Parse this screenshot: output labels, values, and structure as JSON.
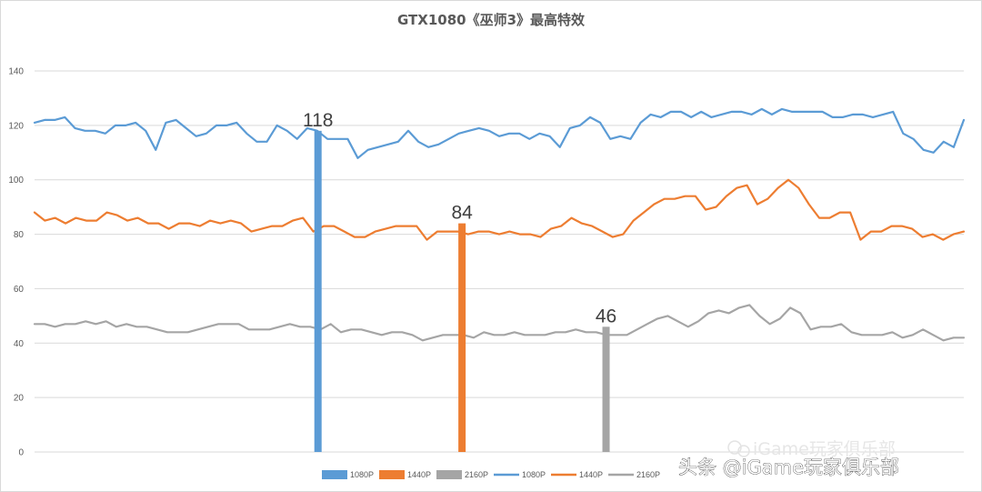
{
  "chart_data": {
    "type": "line",
    "title": "GTX1080《巫师3》最高特效",
    "ylim": [
      0,
      140
    ],
    "yticks": [
      0,
      20,
      40,
      60,
      80,
      100,
      120,
      140
    ],
    "grid": true,
    "legend_position": "bottom",
    "series": [
      {
        "name": "1080P",
        "color": "#5B9BD5",
        "values": [
          121,
          122,
          122,
          123,
          119,
          118,
          118,
          117,
          120,
          120,
          121,
          118,
          111,
          121,
          122,
          119,
          116,
          117,
          120,
          120,
          121,
          117,
          114,
          114,
          120,
          118,
          115,
          119,
          118,
          115,
          115,
          115,
          108,
          111,
          112,
          113,
          114,
          118,
          114,
          112,
          113,
          115,
          117,
          118,
          119,
          118,
          116,
          117,
          117,
          115,
          117,
          116,
          112,
          119,
          120,
          123,
          121,
          115,
          116,
          115,
          121,
          124,
          123,
          125,
          125,
          123,
          125,
          123,
          124,
          125,
          125,
          124,
          126,
          124,
          126,
          125,
          125,
          125,
          125,
          123,
          123,
          124,
          124,
          123,
          124,
          125,
          117,
          115,
          111,
          110,
          114,
          112,
          122
        ]
      },
      {
        "name": "1440P",
        "color": "#ED7D31",
        "values": [
          88,
          85,
          86,
          84,
          86,
          85,
          85,
          88,
          87,
          85,
          86,
          84,
          84,
          82,
          84,
          84,
          83,
          85,
          84,
          85,
          84,
          81,
          82,
          83,
          83,
          85,
          86,
          81,
          83,
          83,
          81,
          79,
          79,
          81,
          82,
          83,
          83,
          83,
          78,
          81,
          81,
          81,
          80,
          81,
          81,
          80,
          81,
          80,
          80,
          79,
          82,
          83,
          86,
          84,
          83,
          81,
          79,
          80,
          85,
          88,
          91,
          93,
          93,
          94,
          94,
          89,
          90,
          94,
          97,
          98,
          91,
          93,
          97,
          100,
          97,
          91,
          86,
          86,
          88,
          88,
          78,
          81,
          81,
          83,
          83,
          82,
          79,
          80,
          78,
          80,
          81
        ]
      },
      {
        "name": "2160P",
        "color": "#A5A5A5",
        "values": [
          47,
          47,
          46,
          47,
          47,
          48,
          47,
          48,
          46,
          47,
          46,
          46,
          45,
          44,
          44,
          44,
          45,
          46,
          47,
          47,
          47,
          45,
          45,
          45,
          46,
          47,
          46,
          46,
          45,
          47,
          44,
          45,
          45,
          44,
          43,
          44,
          44,
          43,
          41,
          42,
          43,
          43,
          43,
          42,
          44,
          43,
          43,
          44,
          43,
          43,
          43,
          44,
          44,
          45,
          44,
          44,
          43,
          43,
          43,
          45,
          47,
          49,
          50,
          48,
          46,
          48,
          51,
          52,
          51,
          53,
          54,
          50,
          47,
          49,
          53,
          51,
          45,
          46,
          46,
          47,
          44,
          43,
          43,
          43,
          44,
          42,
          43,
          45,
          43,
          41,
          42,
          42
        ]
      }
    ],
    "bars": [
      {
        "name": "1080P",
        "value": 118,
        "label": "118",
        "color": "#5B9BD5"
      },
      {
        "name": "1440P",
        "value": 84,
        "label": "84",
        "color": "#ED7D31"
      },
      {
        "name": "2160P",
        "value": 46,
        "label": "46",
        "color": "#A5A5A5"
      }
    ],
    "legend": [
      "1080P",
      "1440P",
      "2160P",
      "1080P",
      "1440P",
      "2160P"
    ]
  },
  "watermark": {
    "primary": "头条 @iGame玩家俱乐部",
    "secondary": "iGame玩家俱乐部"
  }
}
